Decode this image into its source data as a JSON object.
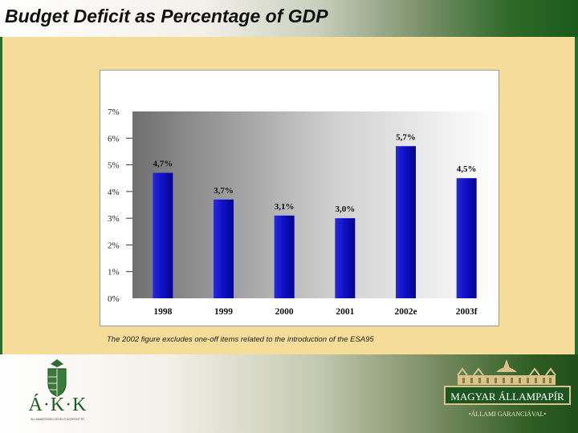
{
  "header": {
    "title": "Budget Deficit as Percentage of GDP"
  },
  "colors": {
    "bar": "#0a0ab8",
    "accent_green": "#1b5a1c",
    "background": "#f5dc98"
  },
  "chart_data": {
    "type": "bar",
    "title": "",
    "xlabel": "",
    "ylabel": "",
    "categories": [
      "1998",
      "1999",
      "2000",
      "2001",
      "2002e",
      "2003f"
    ],
    "values": [
      4.7,
      3.7,
      3.1,
      3.0,
      5.7,
      4.5
    ],
    "data_labels": [
      "4,7%",
      "3,7%",
      "3,1%",
      "3,0%",
      "5,7%",
      "4,5%"
    ],
    "ylim": [
      0,
      7
    ],
    "yticks": [
      "0%",
      "1%",
      "2%",
      "3%",
      "4%",
      "5%",
      "6%",
      "7%"
    ],
    "grid": false
  },
  "footnote": "The 2002 figure excludes one-off items related to the introduction of the ESA95",
  "logos": {
    "akk": {
      "letters": "Á·K·K",
      "subtitle": "ÁLLAMADÓSSÁG KEZELŐ KÖZPONT RT."
    },
    "magyar": {
      "name": "MAGYAR ÁLLAMPAPÍR",
      "tagline": "•ÁLLAMI GARANCIÁVAL•"
    }
  }
}
